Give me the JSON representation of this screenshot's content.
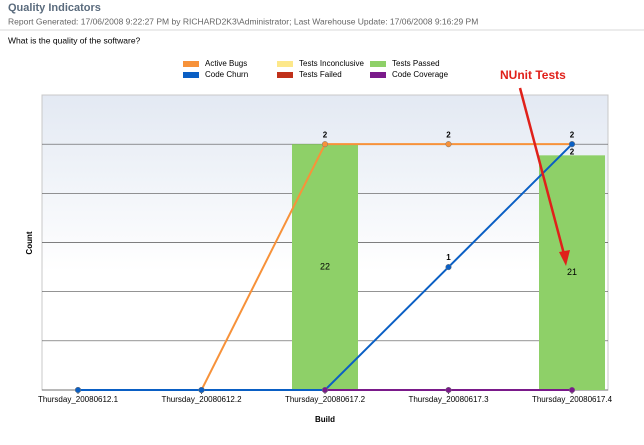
{
  "header": {
    "title": "Quality Indicators",
    "subtitle": "Report Generated: 17/06/2008 9:22:27 PM by RICHARD2K3\\Administrator; Last Warehouse Update: 17/06/2008 9:16:29 PM",
    "question": "What is the quality of the software?"
  },
  "chart_data": {
    "type": "combo",
    "x_label": "Build",
    "y_label": "Count",
    "annotation": "NUnit Tests",
    "categories": [
      "Thursday_20080612.1",
      "Thursday_20080612.2",
      "Thursday_20080617.2",
      "Thursday_20080617.3",
      "Thursday_20080617.4"
    ],
    "ylim": [
      0,
      2.4
    ],
    "yticks": [
      0,
      0.4,
      0.8,
      1.2,
      1.6,
      2.0
    ],
    "y2lim": [
      0,
      26.4
    ],
    "grid": true,
    "series": [
      {
        "name": "Active Bugs",
        "color": "#f7923a",
        "kind": "line",
        "values": [
          0,
          0,
          2,
          2,
          2
        ]
      },
      {
        "name": "Tests Inconclusive",
        "color": "#fde88a",
        "kind": "bar",
        "axis": "y2",
        "values": [
          null,
          null,
          null,
          null,
          null
        ]
      },
      {
        "name": "Tests Passed",
        "color": "#8ed068",
        "kind": "bar",
        "axis": "y2",
        "values": [
          null,
          null,
          22,
          null,
          21
        ]
      },
      {
        "name": "Code Churn",
        "color": "#0a5fc4",
        "kind": "line",
        "values": [
          0,
          0,
          0,
          1,
          2
        ]
      },
      {
        "name": "Tests Failed",
        "color": "#c0311a",
        "kind": "bar",
        "axis": "y2",
        "values": [
          null,
          null,
          null,
          null,
          null
        ]
      },
      {
        "name": "Code Coverage",
        "color": "#7a1a8a",
        "kind": "line",
        "values": [
          null,
          null,
          0,
          0,
          0
        ]
      }
    ]
  }
}
